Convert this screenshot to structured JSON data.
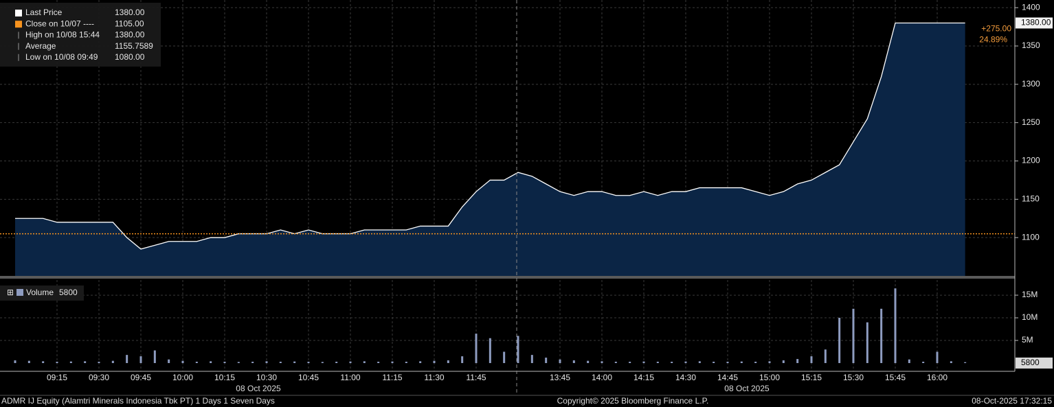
{
  "chart_data": [
    {
      "type": "line",
      "x": [
        "09:00",
        "09:05",
        "09:10",
        "09:15",
        "09:20",
        "09:25",
        "09:30",
        "09:35",
        "09:40",
        "09:45",
        "09:50",
        "09:55",
        "10:00",
        "10:05",
        "10:10",
        "10:15",
        "10:20",
        "10:25",
        "10:30",
        "10:35",
        "10:40",
        "10:45",
        "10:50",
        "10:55",
        "11:00",
        "11:05",
        "11:10",
        "11:15",
        "11:20",
        "11:25",
        "11:30",
        "11:35",
        "11:40",
        "11:45",
        "11:50",
        "11:55",
        "12:00",
        "13:30",
        "13:35",
        "13:40",
        "13:45",
        "13:50",
        "13:55",
        "14:00",
        "14:05",
        "14:10",
        "14:15",
        "14:20",
        "14:25",
        "14:30",
        "14:35",
        "14:40",
        "14:45",
        "14:50",
        "14:55",
        "15:00",
        "15:05",
        "15:10",
        "15:15",
        "15:20",
        "15:25",
        "15:30",
        "15:35",
        "15:40",
        "15:45",
        "15:50",
        "15:55",
        "16:00",
        "16:05",
        "16:10"
      ],
      "series": [
        {
          "name": "Last Price",
          "color": "#ffffff",
          "values": [
            1125,
            1125,
            1125,
            1120,
            1120,
            1120,
            1120,
            1120,
            1100,
            1085,
            1090,
            1095,
            1095,
            1095,
            1100,
            1100,
            1105,
            1105,
            1105,
            1110,
            1105,
            1110,
            1105,
            1105,
            1105,
            1110,
            1110,
            1110,
            1110,
            1115,
            1115,
            1115,
            1140,
            1160,
            1175,
            1175,
            1185,
            1185,
            1180,
            1170,
            1160,
            1155,
            1160,
            1160,
            1155,
            1155,
            1160,
            1155,
            1160,
            1160,
            1165,
            1165,
            1165,
            1165,
            1160,
            1155,
            1160,
            1170,
            1175,
            1185,
            1195,
            1225,
            1255,
            1310,
            1380,
            1380,
            1380,
            1380,
            1380,
            1380
          ]
        }
      ],
      "ylim": [
        1050,
        1410
      ],
      "yticks": [
        1100,
        1150,
        1200,
        1250,
        1300,
        1350,
        1400
      ],
      "xticks": [
        "09:15",
        "09:30",
        "09:45",
        "10:00",
        "10:15",
        "10:30",
        "10:45",
        "11:00",
        "11:15",
        "11:30",
        "11:45",
        "13:45",
        "14:00",
        "14:15",
        "14:30",
        "14:45",
        "15:00",
        "15:15",
        "15:30",
        "15:45",
        "16:00"
      ],
      "grid": true,
      "legend": [
        {
          "label": "Last Price",
          "value": 1380,
          "value_label": "1380.00",
          "color": "#ffffff"
        },
        {
          "label": "Close on 10/07 ----",
          "value": 1105,
          "value_label": "1105.00",
          "color": "#f7931e"
        },
        {
          "label": "High on 10/08 15:44",
          "value": 1380,
          "value_label": "1380.00"
        },
        {
          "label": "Average",
          "value": 1155.7589,
          "value_label": "1155.7589"
        },
        {
          "label": "Low on 10/08 09:49",
          "value": 1080,
          "value_label": "1080.00"
        }
      ],
      "change_label": "+275.00",
      "change_pct_label": "24.89%",
      "date_label": "08 Oct 2025"
    },
    {
      "type": "bar",
      "name": "Volume",
      "last": 5800,
      "color": "#8e9cc0",
      "values": [
        600000,
        500000,
        400000,
        300000,
        350000,
        400000,
        300000,
        500000,
        1800000,
        1500000,
        2800000,
        800000,
        500000,
        300000,
        400000,
        300000,
        250000,
        300000,
        400000,
        300000,
        350000,
        300000,
        250000,
        300000,
        350000,
        400000,
        300000,
        350000,
        300000,
        400000,
        500000,
        600000,
        1500000,
        6500000,
        5500000,
        2500000,
        6000000,
        1500000,
        1800000,
        1200000,
        800000,
        600000,
        500000,
        400000,
        300000,
        300000,
        350000,
        300000,
        300000,
        350000,
        400000,
        300000,
        300000,
        350000,
        300000,
        400000,
        600000,
        900000,
        1500000,
        3000000,
        10000000,
        12000000,
        9000000,
        12000000,
        16500000,
        800000,
        300000,
        2500000,
        400000,
        200000
      ],
      "ylim": [
        0,
        18800000
      ],
      "yticks": [
        {
          "value": 5000000,
          "label": "5M"
        },
        {
          "value": 10000000,
          "label": "10M"
        },
        {
          "value": 15000000,
          "label": "15M"
        }
      ]
    }
  ],
  "footer": {
    "security": "ADMR IJ Equity (Alamtri Minerals Indonesia Tbk PT) 1 Days 1 Seven Days",
    "copyright": "Copyright© 2025 Bloomberg Finance L.P.",
    "timestamp": "08-Oct-2025 17:32:15"
  }
}
